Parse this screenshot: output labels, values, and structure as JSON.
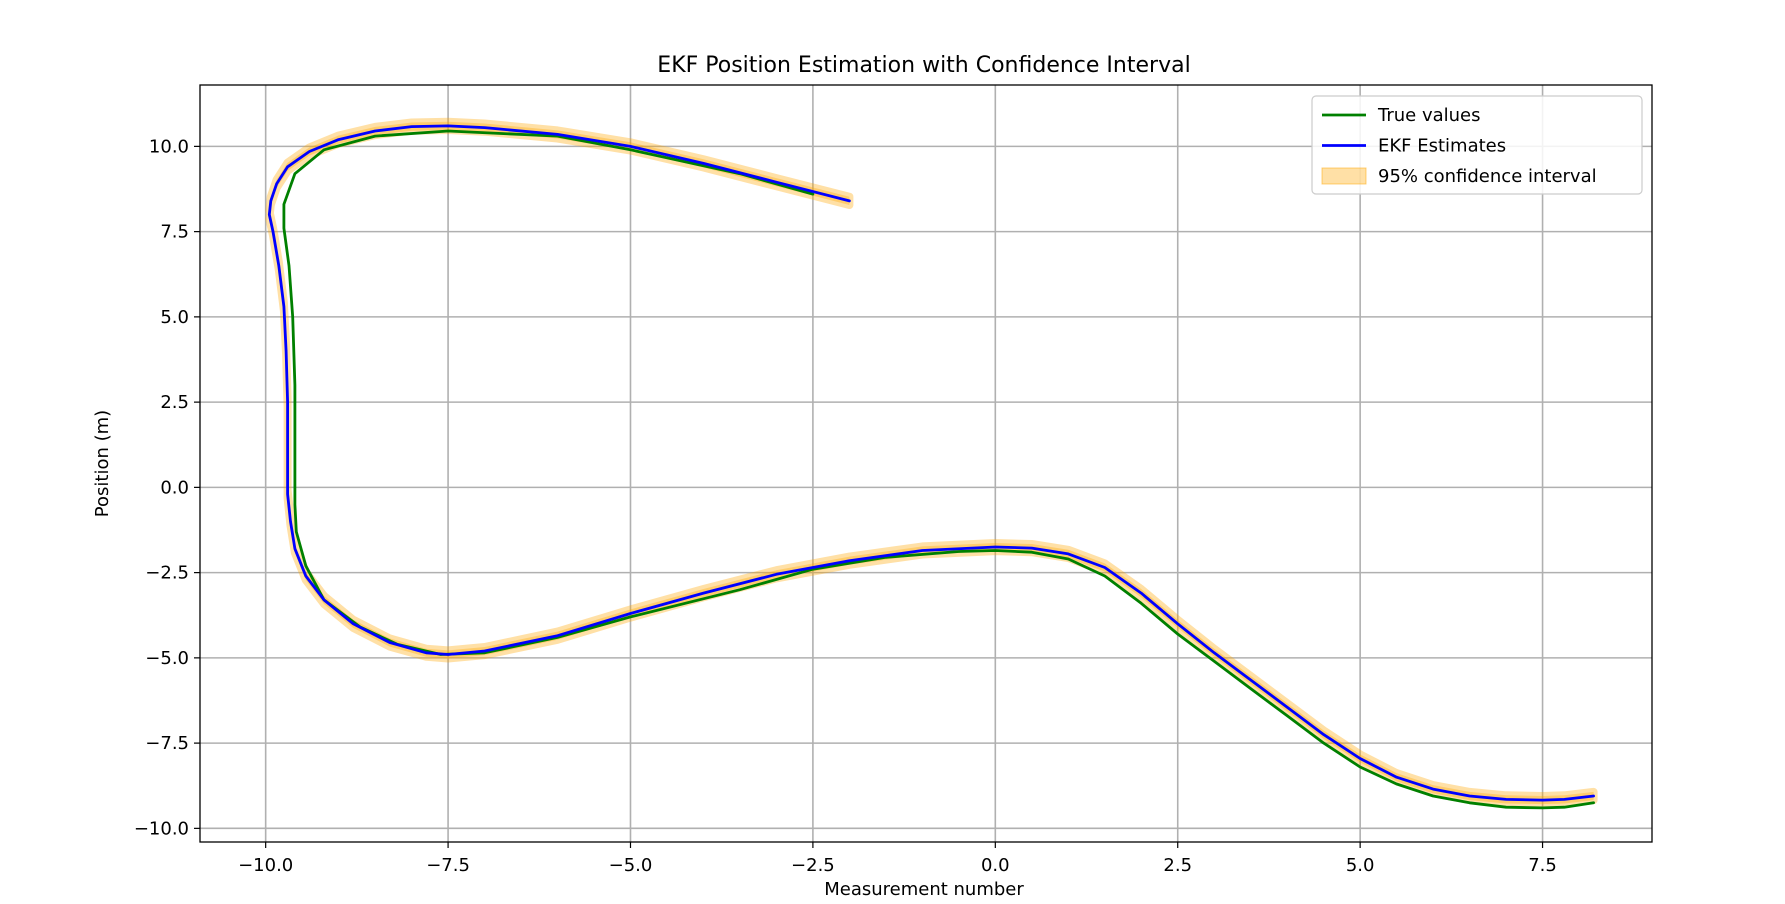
{
  "chart_data": {
    "type": "line",
    "title": "EKF Position Estimation with Confidence Interval",
    "xlabel": "Measurement number",
    "ylabel": "Position (m)",
    "xlim": [
      -10.9,
      9.0
    ],
    "ylim": [
      -10.4,
      11.8
    ],
    "xticks": [
      -10.0,
      -7.5,
      -5.0,
      -2.5,
      0.0,
      2.5,
      5.0,
      7.5
    ],
    "xtick_labels": [
      "−10.0",
      "−7.5",
      "−5.0",
      "−2.5",
      "0.0",
      "2.5",
      "5.0",
      "7.5"
    ],
    "yticks": [
      -10.0,
      -7.5,
      -5.0,
      -2.5,
      0.0,
      2.5,
      5.0,
      7.5,
      10.0
    ],
    "ytick_labels": [
      "−10.0",
      "−7.5",
      "−5.0",
      "−2.5",
      "0.0",
      "2.5",
      "5.0",
      "7.5",
      "10.0"
    ],
    "grid": true,
    "legend_position": "top-right",
    "series": [
      {
        "name": "True values",
        "kind": "line",
        "color": "#008000",
        "points": [
          [
            -2.5,
            8.6
          ],
          [
            -3.5,
            9.2
          ],
          [
            -5.0,
            9.9
          ],
          [
            -6.0,
            10.3
          ],
          [
            -7.5,
            10.45
          ],
          [
            -8.5,
            10.3
          ],
          [
            -9.2,
            9.9
          ],
          [
            -9.6,
            9.2
          ],
          [
            -9.75,
            8.3
          ],
          [
            -9.75,
            7.6
          ],
          [
            -9.68,
            6.5
          ],
          [
            -9.63,
            5.0
          ],
          [
            -9.6,
            3.0
          ],
          [
            -9.6,
            1.0
          ],
          [
            -9.6,
            -0.5
          ],
          [
            -9.58,
            -1.3
          ],
          [
            -9.45,
            -2.3
          ],
          [
            -9.2,
            -3.3
          ],
          [
            -8.7,
            -4.1
          ],
          [
            -8.2,
            -4.6
          ],
          [
            -7.6,
            -4.9
          ],
          [
            -7.0,
            -4.85
          ],
          [
            -6.0,
            -4.4
          ],
          [
            -5.0,
            -3.8
          ],
          [
            -3.5,
            -3.0
          ],
          [
            -2.5,
            -2.4
          ],
          [
            -1.5,
            -2.05
          ],
          [
            -0.5,
            -1.88
          ],
          [
            0.0,
            -1.85
          ],
          [
            0.5,
            -1.9
          ],
          [
            1.0,
            -2.1
          ],
          [
            1.5,
            -2.6
          ],
          [
            2.0,
            -3.4
          ],
          [
            2.5,
            -4.3
          ],
          [
            3.0,
            -5.1
          ],
          [
            3.5,
            -5.9
          ],
          [
            4.0,
            -6.7
          ],
          [
            4.5,
            -7.5
          ],
          [
            5.0,
            -8.2
          ],
          [
            5.5,
            -8.7
          ],
          [
            6.0,
            -9.05
          ],
          [
            6.5,
            -9.25
          ],
          [
            7.0,
            -9.38
          ],
          [
            7.5,
            -9.4
          ],
          [
            7.8,
            -9.38
          ],
          [
            8.2,
            -9.25
          ]
        ]
      },
      {
        "name": "EKF Estimates",
        "kind": "line",
        "color": "#0000ff",
        "points": [
          [
            -2.0,
            8.4
          ],
          [
            -3.0,
            8.95
          ],
          [
            -4.0,
            9.5
          ],
          [
            -5.0,
            10.0
          ],
          [
            -6.0,
            10.35
          ],
          [
            -7.0,
            10.55
          ],
          [
            -7.5,
            10.6
          ],
          [
            -8.0,
            10.58
          ],
          [
            -8.5,
            10.45
          ],
          [
            -9.0,
            10.2
          ],
          [
            -9.4,
            9.85
          ],
          [
            -9.7,
            9.4
          ],
          [
            -9.85,
            8.9
          ],
          [
            -9.93,
            8.4
          ],
          [
            -9.95,
            8.0
          ],
          [
            -9.9,
            7.5
          ],
          [
            -9.82,
            6.5
          ],
          [
            -9.75,
            5.3
          ],
          [
            -9.72,
            4.0
          ],
          [
            -9.7,
            2.5
          ],
          [
            -9.7,
            1.0
          ],
          [
            -9.7,
            -0.2
          ],
          [
            -9.66,
            -1.0
          ],
          [
            -9.6,
            -1.8
          ],
          [
            -9.45,
            -2.6
          ],
          [
            -9.2,
            -3.3
          ],
          [
            -8.8,
            -4.0
          ],
          [
            -8.3,
            -4.55
          ],
          [
            -7.8,
            -4.85
          ],
          [
            -7.5,
            -4.9
          ],
          [
            -7.0,
            -4.8
          ],
          [
            -6.0,
            -4.35
          ],
          [
            -5.0,
            -3.7
          ],
          [
            -4.0,
            -3.1
          ],
          [
            -3.0,
            -2.55
          ],
          [
            -2.0,
            -2.15
          ],
          [
            -1.0,
            -1.85
          ],
          [
            0.0,
            -1.75
          ],
          [
            0.5,
            -1.78
          ],
          [
            1.0,
            -1.95
          ],
          [
            1.5,
            -2.35
          ],
          [
            2.0,
            -3.1
          ],
          [
            2.5,
            -4.0
          ],
          [
            3.0,
            -4.85
          ],
          [
            3.5,
            -5.65
          ],
          [
            4.0,
            -6.45
          ],
          [
            4.5,
            -7.25
          ],
          [
            5.0,
            -7.95
          ],
          [
            5.5,
            -8.5
          ],
          [
            6.0,
            -8.85
          ],
          [
            6.5,
            -9.05
          ],
          [
            7.0,
            -9.15
          ],
          [
            7.5,
            -9.17
          ],
          [
            7.8,
            -9.15
          ],
          [
            8.2,
            -9.05
          ]
        ]
      }
    ],
    "confidence_interval": {
      "name": "95% confidence interval",
      "color": "#ffa500",
      "opacity": 0.35,
      "half_width": 0.12
    }
  }
}
